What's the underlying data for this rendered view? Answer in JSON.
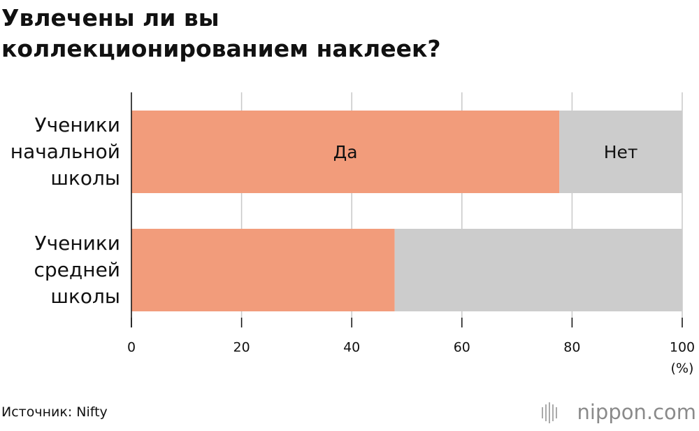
{
  "chart_data": {
    "type": "bar",
    "orientation": "horizontal",
    "stacked": true,
    "title": "Увлечены ли вы коллекционированием наклеек?",
    "categories": [
      "Ученики начальной школы",
      "Ученики средней школы"
    ],
    "series": [
      {
        "name": "Да",
        "color": "#f29c7b",
        "values": [
          77.7,
          47.8
        ]
      },
      {
        "name": "Нет",
        "color": "#cccccc",
        "values": [
          22.3,
          52.2
        ]
      }
    ],
    "xlim": [
      0,
      100
    ],
    "xticks": [
      0,
      20,
      40,
      60,
      80,
      100
    ],
    "x_label": "(%)",
    "grid": true,
    "source": "Источник: Nifty",
    "logo": "nippon.com"
  }
}
